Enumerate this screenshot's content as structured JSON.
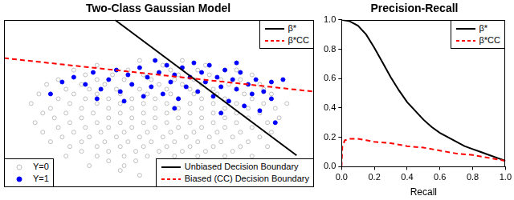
{
  "chart_data": [
    {
      "type": "scatter",
      "title": "Two-Class Gaussian Model",
      "xlim": [
        -4,
        4
      ],
      "ylim": [
        -3.5,
        3.5
      ],
      "tick_labels": false,
      "grid": false,
      "series": [
        {
          "color": "#bebebe",
          "marker": "open circle",
          "x": [
            -0.5,
            0.6,
            -1.6,
            0.1,
            1.2,
            -2.2,
            -0.8,
            0.3,
            1.0,
            2.0,
            -1.9,
            -1.2,
            -0.4,
            0.5,
            1.3,
            2.4,
            -2.6,
            -1.6,
            -0.9,
            -0.2,
            0.4,
            0.9,
            1.6,
            2.1,
            -2.9,
            -2.0,
            -1.4,
            -0.7,
            0.0,
            0.6,
            1.1,
            1.8,
            2.6,
            -2.4,
            -1.8,
            -1.1,
            -0.5,
            0.2,
            0.8,
            1.4,
            2.0,
            2.7,
            -3.1,
            -2.2,
            -1.6,
            -1.0,
            -0.3,
            0.3,
            0.9,
            1.5,
            2.2,
            2.9,
            -2.6,
            -1.9,
            -1.3,
            -0.7,
            -0.1,
            0.5,
            1.1,
            1.7,
            2.4,
            -3.3,
            -2.3,
            -1.6,
            -1.0,
            -0.4,
            0.2,
            0.8,
            1.4,
            2.0,
            2.7,
            3.3,
            -2.8,
            -2.0,
            -1.3,
            -0.7,
            -0.1,
            0.5,
            1.1,
            1.7,
            2.3,
            3.0,
            -3.0,
            -2.4,
            -1.7,
            -1.0,
            -0.4,
            0.2,
            0.8,
            1.4,
            2.0,
            2.6,
            -2.7,
            -2.0,
            -1.3,
            -0.7,
            -0.1,
            0.5,
            1.1,
            1.7,
            2.3,
            3.1,
            -3.2,
            -2.3,
            -1.6,
            -1.0,
            -0.4,
            0.2,
            0.8,
            1.4,
            2.0,
            2.8,
            -2.6,
            -1.9,
            -1.3,
            -0.7,
            -0.1,
            0.5,
            1.1,
            1.7,
            2.4,
            -3.0,
            -2.2,
            -1.5,
            -0.9,
            -0.3,
            0.3,
            0.9,
            1.5,
            2.1,
            2.9,
            -2.5,
            -1.8,
            -1.1,
            -0.5,
            0.1,
            0.7,
            1.3,
            1.9,
            2.6,
            -2.8,
            -2.0,
            -1.4,
            -0.8,
            -0.2,
            0.4,
            1.0,
            1.6,
            2.3,
            -2.3,
            -1.6,
            -1.0,
            -0.4,
            0.2,
            0.8,
            1.4,
            2.1,
            2.8,
            -2.0,
            -1.3,
            -0.6,
            0.0,
            0.6,
            1.2,
            1.9,
            -2.4,
            -1.6,
            -0.9,
            -0.3,
            0.4,
            1.0,
            1.7,
            2.4,
            -1.3,
            -0.6,
            -1.8,
            -0.9,
            -1.0,
            -0.5
          ],
          "values": [
            1.8,
            1.8,
            1.6,
            1.6,
            1.6,
            1.4,
            1.4,
            1.4,
            1.4,
            1.4,
            1.2,
            1.2,
            1.2,
            1.2,
            1.2,
            1.2,
            1.0,
            1.0,
            1.0,
            1.0,
            1.0,
            1.0,
            1.0,
            1.0,
            0.8,
            0.8,
            0.8,
            0.8,
            0.8,
            0.8,
            0.8,
            0.8,
            0.8,
            0.6,
            0.6,
            0.6,
            0.6,
            0.6,
            0.6,
            0.6,
            0.6,
            0.6,
            0.4,
            0.4,
            0.4,
            0.4,
            0.4,
            0.4,
            0.4,
            0.4,
            0.4,
            0.4,
            0.2,
            0.2,
            0.2,
            0.2,
            0.2,
            0.2,
            0.2,
            0.2,
            0.2,
            0.0,
            0.0,
            0.0,
            0.0,
            0.0,
            0.0,
            0.0,
            0.0,
            0.0,
            0.0,
            0.0,
            -0.2,
            -0.2,
            -0.2,
            -0.2,
            -0.2,
            -0.2,
            -0.2,
            -0.2,
            -0.2,
            -0.2,
            -0.4,
            -0.4,
            -0.4,
            -0.4,
            -0.4,
            -0.4,
            -0.4,
            -0.4,
            -0.4,
            -0.4,
            -0.6,
            -0.6,
            -0.6,
            -0.6,
            -0.6,
            -0.6,
            -0.6,
            -0.6,
            -0.6,
            -0.6,
            -0.8,
            -0.8,
            -0.8,
            -0.8,
            -0.8,
            -0.8,
            -0.8,
            -0.8,
            -0.8,
            -0.8,
            -1.0,
            -1.0,
            -1.0,
            -1.0,
            -1.0,
            -1.0,
            -1.0,
            -1.0,
            -1.0,
            -1.2,
            -1.2,
            -1.2,
            -1.2,
            -1.2,
            -1.2,
            -1.2,
            -1.2,
            -1.2,
            -1.2,
            -1.4,
            -1.4,
            -1.4,
            -1.4,
            -1.4,
            -1.4,
            -1.4,
            -1.4,
            -1.4,
            -1.6,
            -1.6,
            -1.6,
            -1.6,
            -1.6,
            -1.6,
            -1.6,
            -1.6,
            -1.6,
            -1.8,
            -1.8,
            -1.8,
            -1.8,
            -1.8,
            -1.8,
            -1.8,
            -1.8,
            -1.8,
            -2.0,
            -2.0,
            -2.0,
            -2.0,
            -2.0,
            -2.0,
            -2.0,
            -2.2,
            -2.2,
            -2.2,
            -2.2,
            -2.2,
            -2.2,
            -2.2,
            -2.2,
            -2.4,
            -2.4,
            -2.6,
            -2.6,
            -2.8,
            -3.0
          ]
        },
        {
          "color": "#0000ff",
          "marker": "filled circle",
          "x": [
            -2.8,
            -2.5,
            -2.2,
            -1.9,
            -1.7,
            -1.6,
            -1.5,
            -1.3,
            -1.1,
            -1.0,
            -0.9,
            -0.8,
            -0.7,
            -0.5,
            -0.4,
            -0.3,
            -0.2,
            -0.1,
            0.0,
            0.1,
            0.2,
            0.3,
            0.4,
            0.4,
            0.5,
            0.6,
            0.7,
            0.8,
            0.9,
            1.0,
            1.1,
            1.2,
            1.3,
            1.4,
            1.5,
            1.6,
            1.6,
            1.7,
            1.8,
            1.9,
            2.0,
            2.0,
            2.1,
            2.2,
            2.3,
            2.4,
            2.5,
            2.6,
            2.7,
            2.9,
            2.9,
            3.0,
            3.2
          ],
          "values": [
            0.4,
            0.9,
            1.1,
            0.8,
            1.3,
            0.2,
            0.6,
            1.0,
            1.4,
            0.5,
            0.1,
            1.2,
            0.8,
            1.5,
            0.3,
            1.1,
            0.7,
            1.8,
            1.3,
            0.4,
            1.6,
            0.9,
            1.2,
            -0.2,
            0.2,
            1.5,
            0.7,
            1.1,
            1.7,
            0.5,
            1.3,
            0.9,
            1.6,
            0.3,
            1.1,
            0.7,
            -0.4,
            1.4,
            0.1,
            1.0,
            0.6,
            1.7,
            1.3,
            -0.1,
            0.8,
            0.4,
            1.0,
            -0.3,
            0.5,
            0.2,
            0.9,
            -0.8,
            1.0
          ]
        },
        {
          "type": "line",
          "color": "#000000",
          "line_style": "solid",
          "x": [
            -1.14,
            3.55
          ],
          "values": [
            3.5,
            -2.17
          ]
        },
        {
          "type": "line",
          "color": "#ff0000",
          "line_style": "dashed",
          "x": [
            -4,
            4
          ],
          "values": [
            1.9,
            0.5
          ]
        }
      ],
      "legends": [
        {
          "legend": "top right",
          "entries": [
            {
              "name": "β*",
              "color": "#000000",
              "line_style": "solid"
            },
            {
              "name": "β*CC",
              "color": "#ff0000",
              "line_style": "dashed"
            }
          ]
        },
        {
          "legend": "bottom left",
          "entries": [
            {
              "name": "Y=0",
              "color": "#bebebe",
              "marker": "open circle"
            },
            {
              "name": "Y=1",
              "color": "#0000ff",
              "marker": "filled circle"
            }
          ]
        },
        {
          "legend": "bottom right",
          "entries": [
            {
              "name": "Unbiased Decision Boundary",
              "color": "#000000",
              "line_style": "solid"
            },
            {
              "name": "Biased (CC) Decision Boundary",
              "color": "#ff0000",
              "line_style": "dashed"
            }
          ]
        }
      ]
    },
    {
      "type": "line",
      "title": "Precision-Recall",
      "x_label": "Recall",
      "xlim": [
        0,
        1
      ],
      "ylim": [
        0,
        1
      ],
      "xticks": [
        {
          "value": 0,
          "label": "0.0"
        },
        0.2,
        0.4,
        0.6,
        0.8,
        {
          "value": 1,
          "label": "1.0"
        }
      ],
      "yticks": [
        {
          "value": 0,
          "label": "0.0"
        },
        0.2,
        0.4,
        0.6,
        0.8,
        {
          "value": 1,
          "label": "1.0"
        }
      ],
      "grid": false,
      "legend": "top right",
      "series": [
        {
          "name": "β*",
          "color": "#000000",
          "line_style": "solid",
          "x": [
            0,
            0.05,
            0.1,
            0.15,
            0.2,
            0.25,
            0.3,
            0.35,
            0.4,
            0.45,
            0.5,
            0.55,
            0.6,
            0.65,
            0.7,
            0.75,
            0.8,
            0.85,
            0.9,
            0.95,
            1.0
          ],
          "values": [
            1.0,
            0.99,
            0.96,
            0.9,
            0.81,
            0.71,
            0.61,
            0.52,
            0.44,
            0.38,
            0.32,
            0.27,
            0.23,
            0.2,
            0.17,
            0.14,
            0.12,
            0.1,
            0.08,
            0.06,
            0.04
          ]
        },
        {
          "name": "β*CC",
          "color": "#ff0000",
          "line_style": "dashed",
          "x": [
            0,
            0.005,
            0.02,
            0.05,
            0.1,
            0.15,
            0.2,
            0.3,
            0.4,
            0.5,
            0.6,
            0.7,
            0.8,
            0.9,
            1.0
          ],
          "values": [
            0,
            0.14,
            0.18,
            0.19,
            0.19,
            0.18,
            0.17,
            0.16,
            0.14,
            0.13,
            0.11,
            0.09,
            0.08,
            0.06,
            0.04
          ]
        }
      ]
    }
  ]
}
